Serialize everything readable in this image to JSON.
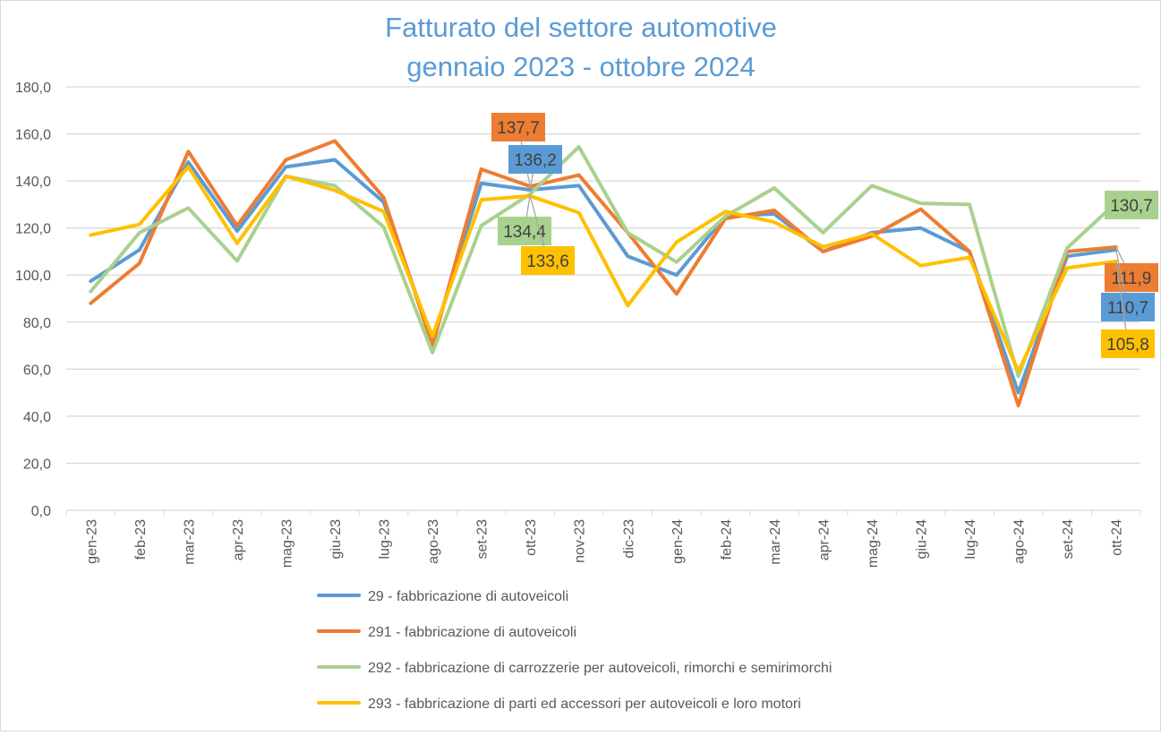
{
  "chart_data": {
    "type": "line",
    "title": [
      "Fatturato del settore automotive",
      "gennaio 2023 - ottobre 2024"
    ],
    "xlabel": "",
    "ylabel": "",
    "ylim": [
      0,
      180
    ],
    "yticks": [
      "0,0",
      "20,0",
      "40,0",
      "60,0",
      "80,0",
      "100,0",
      "120,0",
      "140,0",
      "160,0",
      "180,0"
    ],
    "grid": true,
    "legend_position": "bottom",
    "categories": [
      "gen-23",
      "feb-23",
      "mar-23",
      "apr-23",
      "mag-23",
      "giu-23",
      "lug-23",
      "ago-23",
      "set-23",
      "ott-23",
      "nov-23",
      "dic-23",
      "gen-24",
      "feb-24",
      "mar-24",
      "apr-24",
      "mag-24",
      "giu-24",
      "lug-24",
      "ago-24",
      "set-24",
      "ott-24"
    ],
    "series": [
      {
        "name": "29 - fabbricazione di autoveicoli",
        "color": "#5b9bd5",
        "values": [
          97.4,
          110.7,
          148,
          118.7,
          146,
          149,
          131,
          72,
          139,
          136.2,
          138,
          108,
          100,
          125,
          126,
          110,
          118,
          120,
          110,
          50,
          108,
          110.7
        ]
      },
      {
        "name": "291 - fabbricazione di autoveicoli",
        "color": "#ed7d31",
        "values": [
          88,
          105,
          152.5,
          121,
          149,
          157,
          133,
          70,
          145,
          137.7,
          142.5,
          118,
          92,
          124,
          127.5,
          110,
          116.5,
          128,
          110,
          44.5,
          110,
          111.9
        ]
      },
      {
        "name": "292 - fabbricazione di carrozzerie per autoveicoli, rimorchi e semirimorchi",
        "color": "#a9d18e",
        "values": [
          93,
          118,
          128.5,
          106,
          142,
          138,
          120.5,
          67,
          121,
          134.4,
          154.5,
          118,
          105.5,
          125,
          137,
          118,
          138,
          130.5,
          130,
          57,
          111.5,
          130.7
        ]
      },
      {
        "name": "293 - fabbricazione di parti ed accessori per autoveicoli e loro motori",
        "color": "#ffc000",
        "values": [
          117,
          121.5,
          146,
          113.5,
          142,
          136,
          127,
          74,
          132,
          133.6,
          126.5,
          87,
          114,
          127,
          122.5,
          112,
          117.5,
          104,
          107.5,
          59,
          103,
          105.8
        ]
      }
    ],
    "data_labels": [
      {
        "series": 1,
        "category": "ott-23",
        "text": "137,7"
      },
      {
        "series": 0,
        "category": "ott-23",
        "text": "136,2"
      },
      {
        "series": 2,
        "category": "ott-23",
        "text": "134,4"
      },
      {
        "series": 3,
        "category": "ott-23",
        "text": "133,6"
      },
      {
        "series": 2,
        "category": "ott-24",
        "text": "130,7"
      },
      {
        "series": 1,
        "category": "ott-24",
        "text": "111,9"
      },
      {
        "series": 0,
        "category": "ott-24",
        "text": "110,7"
      },
      {
        "series": 3,
        "category": "ott-24",
        "text": "105,8"
      }
    ],
    "title_color": "#5b9bd5"
  }
}
